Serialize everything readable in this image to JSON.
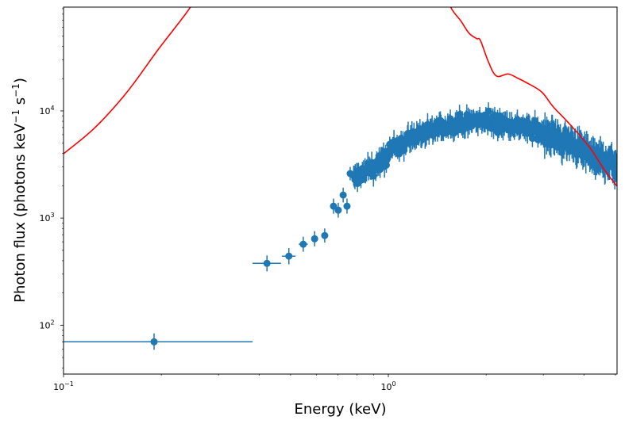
{
  "chart_data": {
    "type": "scatter",
    "title": "",
    "xlabel": "Energy (keV)",
    "ylabel": {
      "prefix": "Photon flux (photons keV",
      "sup1": "−1",
      "mid": " s",
      "sup2": "−1",
      "suffix": ")"
    },
    "xscale": "log",
    "yscale": "log",
    "xlim": [
      0.1,
      5.06
    ],
    "ylim": [
      35,
      93000
    ],
    "grid": false,
    "legend": "none",
    "x_ticks": [
      {
        "value": 0.1,
        "base": "10",
        "exp": "−1"
      },
      {
        "value": 1.0,
        "base": "10",
        "exp": "0"
      }
    ],
    "y_ticks": [
      {
        "value": 100,
        "base": "10",
        "exp": "2"
      },
      {
        "value": 1000,
        "base": "10",
        "exp": "3"
      },
      {
        "value": 10000,
        "base": "10",
        "exp": "4"
      }
    ],
    "series": [
      {
        "name": "data",
        "kind": "errorbar",
        "color": "#1f77b4",
        "points": [
          {
            "x": 0.19,
            "y": 70,
            "xlo": 0.1,
            "xhi": 0.382,
            "ylo": 59,
            "yhi": 84
          },
          {
            "x": 0.423,
            "y": 378,
            "xlo": 0.382,
            "xhi": 0.467,
            "ylo": 318,
            "yhi": 448
          },
          {
            "x": 0.494,
            "y": 441,
            "xlo": 0.47,
            "xhi": 0.518,
            "ylo": 370,
            "yhi": 525
          },
          {
            "x": 0.547,
            "y": 570,
            "xlo": 0.53,
            "xhi": 0.565,
            "ylo": 485,
            "yhi": 670
          },
          {
            "x": 0.593,
            "y": 641,
            "xlo": 0.58,
            "xhi": 0.606,
            "ylo": 545,
            "yhi": 755
          },
          {
            "x": 0.637,
            "y": 687,
            "xlo": 0.625,
            "xhi": 0.649,
            "ylo": 590,
            "yhi": 800
          },
          {
            "x": 0.678,
            "y": 1291,
            "xlo": 0.67,
            "xhi": 0.686,
            "ylo": 1100,
            "yhi": 1520
          },
          {
            "x": 0.701,
            "y": 1185,
            "xlo": 0.694,
            "xhi": 0.708,
            "ylo": 1010,
            "yhi": 1390
          },
          {
            "x": 0.726,
            "y": 1640,
            "xlo": 0.719,
            "xhi": 0.733,
            "ylo": 1400,
            "yhi": 1920
          },
          {
            "x": 0.746,
            "y": 1291,
            "xlo": 0.74,
            "xhi": 0.752,
            "ylo": 1100,
            "yhi": 1520
          },
          {
            "x": 0.763,
            "y": 2600,
            "xlo": 0.757,
            "xhi": 0.769,
            "ylo": 2250,
            "yhi": 3000
          }
        ],
        "dense_band": {
          "x_range": [
            0.78,
            5.06
          ],
          "envelope": [
            {
              "x": 0.78,
              "y": 2300
            },
            {
              "x": 0.85,
              "y": 2700
            },
            {
              "x": 0.95,
              "y": 3300
            },
            {
              "x": 1.05,
              "y": 4600
            },
            {
              "x": 1.2,
              "y": 5800
            },
            {
              "x": 1.4,
              "y": 6700
            },
            {
              "x": 1.6,
              "y": 7600
            },
            {
              "x": 1.8,
              "y": 7900
            },
            {
              "x": 2.0,
              "y": 8000
            },
            {
              "x": 2.3,
              "y": 7600
            },
            {
              "x": 2.6,
              "y": 7100
            },
            {
              "x": 3.0,
              "y": 6200
            },
            {
              "x": 3.5,
              "y": 5200
            },
            {
              "x": 4.0,
              "y": 4300
            },
            {
              "x": 4.5,
              "y": 3600
            },
            {
              "x": 5.06,
              "y": 3000
            }
          ],
          "scatter_dex": 0.07,
          "count": 420
        }
      },
      {
        "name": "model",
        "kind": "line",
        "color": "#ff0000",
        "points": [
          {
            "x": 0.1,
            "y": 3980
          },
          {
            "x": 0.125,
            "y": 6990
          },
          {
            "x": 0.157,
            "y": 15050
          },
          {
            "x": 0.197,
            "y": 38500
          },
          {
            "x": 0.245,
            "y": 91700
          },
          {
            "x": 0.26,
            "y": 140000
          },
          {
            "x": 1.5,
            "y": 140000
          },
          {
            "x": 1.56,
            "y": 91700
          },
          {
            "x": 1.67,
            "y": 69500
          },
          {
            "x": 1.77,
            "y": 53300
          },
          {
            "x": 1.87,
            "y": 47300
          },
          {
            "x": 1.92,
            "y": 45600
          },
          {
            "x": 2.03,
            "y": 29000
          },
          {
            "x": 2.15,
            "y": 21200
          },
          {
            "x": 2.34,
            "y": 22100
          },
          {
            "x": 2.5,
            "y": 20200
          },
          {
            "x": 2.64,
            "y": 18600
          },
          {
            "x": 2.96,
            "y": 15100
          },
          {
            "x": 3.22,
            "y": 10900
          },
          {
            "x": 3.6,
            "y": 7650
          },
          {
            "x": 4.15,
            "y": 4640
          },
          {
            "x": 4.64,
            "y": 2780
          },
          {
            "x": 5.06,
            "y": 1990
          }
        ]
      }
    ]
  }
}
